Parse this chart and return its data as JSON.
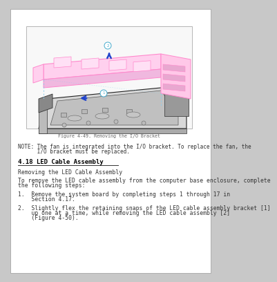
{
  "bg_color": "#c8c8c8",
  "page_bg": "#ffffff",
  "figure_caption": "Figure 4-49. Removing the I/O Bracket",
  "note_text_line1": "NOTE: The fan is integrated into the I/O bracket. To replace the fan, the",
  "note_text_line2": "      I/O bracket must be replaced.",
  "section_title": "4.18 LED Cable Assembly",
  "subsection": "Removing the LED Cable Assembly",
  "intro_line1": "To remove the LED cable assembly from the computer base enclosure, complete",
  "intro_line2": "the following steps:",
  "step1_line1": "1.  Remove the system board by completing steps 1 through 17 in",
  "step1_line2": "    Section 4.17.",
  "step2_line1": "2.  Slightly flex the retaining snaps of the LED cable assembly bracket [1]",
  "step2_line2": "    up one at a time, while removing the LED cable assembly [2]",
  "step2_line3": "    (Figure 4-50).",
  "text_color": "#333333",
  "caption_color": "#666666",
  "title_color": "#000000",
  "pink_color": "#ff88cc",
  "blue_arrow_color": "#2244cc",
  "callout_color": "#44aacc",
  "dashed_color": "#88ccee",
  "font_size_body": 5.8,
  "font_size_caption": 4.8,
  "font_size_title": 6.5,
  "font_size_note": 5.5
}
